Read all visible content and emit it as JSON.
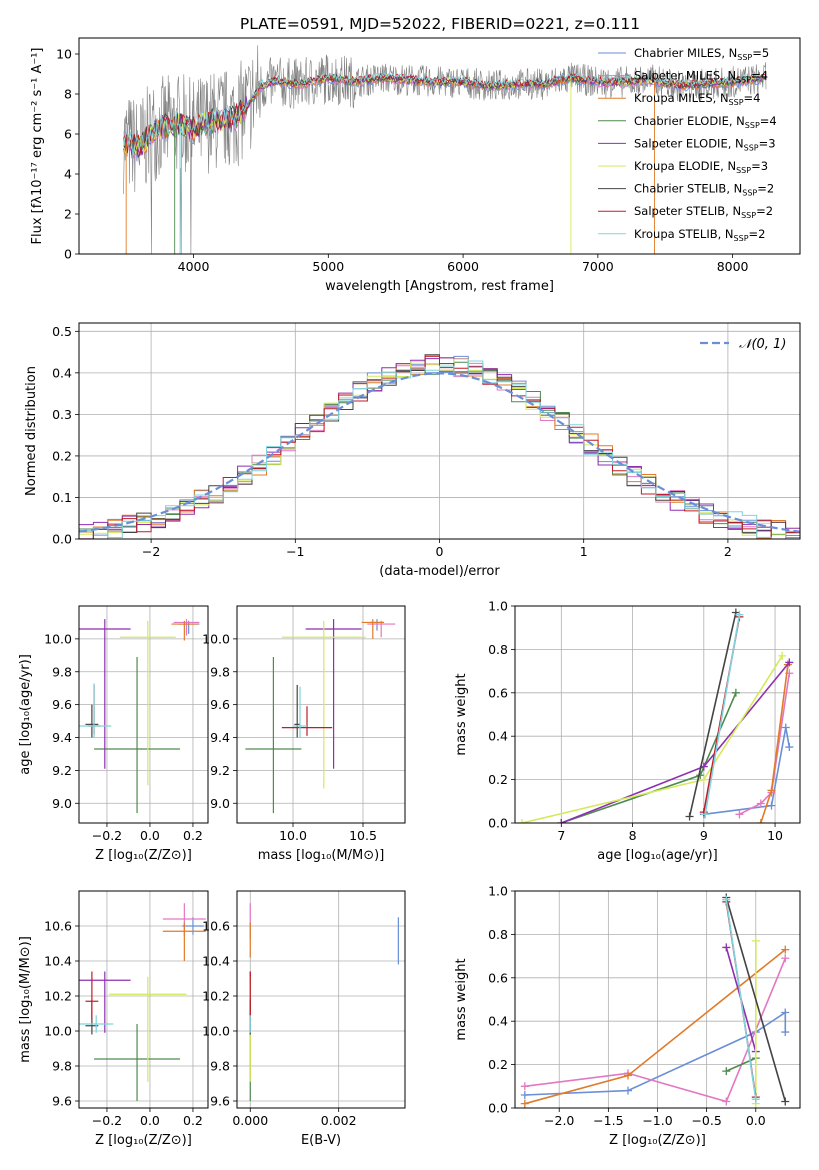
{
  "figure": {
    "title": "PLATE=0591, MJD=52022, FIBERID=0221, z=0.111"
  },
  "colors": {
    "Chabrier MILES": "#6a8fd6",
    "Salpeter MILES": "#e377c2",
    "Kroupa MILES": "#e07b2a",
    "Chabrier ELODIE": "#4f8a4f",
    "Salpeter ELODIE": "#8e2fb0",
    "Kroupa ELODIE": "#d4ea5a",
    "Chabrier STELIB": "#444444",
    "Salpeter STELIB": "#c01c28",
    "Kroupa STELIB": "#7fd3dc",
    "data": "#808080",
    "normal": "#6a8fd6"
  },
  "chart_data": [
    {
      "id": "spectrum",
      "type": "line",
      "xlabel": "wavelength [Angstrom, rest frame]",
      "ylabel": "Flux [fλ10⁻¹⁷ erg cm⁻² s⁻¹ A⁻¹]",
      "xlim": [
        3150,
        8500
      ],
      "ylim": [
        0,
        10.8
      ],
      "xticks": [
        4000,
        5000,
        6000,
        7000,
        8000
      ],
      "yticks": [
        0,
        2,
        4,
        6,
        8,
        10
      ],
      "grid": false,
      "legend_position": "right",
      "legend": [
        {
          "name": "Chabrier MILES",
          "n": "5"
        },
        {
          "name": "Salpeter MILES",
          "n": "4"
        },
        {
          "name": "Kroupa MILES",
          "n": "4"
        },
        {
          "name": "Chabrier ELODIE",
          "n": "4"
        },
        {
          "name": "Salpeter ELODIE",
          "n": "3"
        },
        {
          "name": "Kroupa ELODIE",
          "n": "3"
        },
        {
          "name": "Chabrier STELIB",
          "n": "2"
        },
        {
          "name": "Salpeter STELIB",
          "n": "2"
        },
        {
          "name": "Kroupa STELIB",
          "n": "2"
        }
      ],
      "continuum": {
        "x": [
          3480,
          3600,
          3700,
          3800,
          3900,
          4000,
          4100,
          4200,
          4300,
          4400,
          4500,
          4600,
          4800,
          5000,
          5200,
          5400,
          5600,
          5800,
          6000,
          6200,
          6400,
          6600,
          6800,
          7000,
          7200,
          7400,
          7600,
          7800,
          8000,
          8250
        ],
        "y": [
          5.6,
          5.3,
          6.2,
          6.4,
          6.5,
          6.2,
          6.6,
          6.7,
          6.8,
          7.4,
          8.4,
          8.6,
          8.5,
          8.8,
          8.6,
          8.8,
          8.7,
          8.6,
          8.6,
          8.4,
          8.5,
          8.5,
          8.8,
          8.6,
          8.6,
          8.7,
          8.4,
          8.5,
          8.6,
          8.8
        ]
      }
    },
    {
      "id": "residuals",
      "type": "line",
      "xlabel": "(data-model)/error",
      "ylabel": "Normed distribution",
      "xlim": [
        -2.5,
        2.5
      ],
      "ylim": [
        0,
        0.52
      ],
      "xticks": [
        -2,
        -1,
        0,
        1,
        2
      ],
      "yticks": [
        0.0,
        0.1,
        0.2,
        0.3,
        0.4,
        0.5
      ],
      "grid": true,
      "legend_position": "top-right",
      "legend_label": "𝒩(0, 1)"
    },
    {
      "id": "age-vs-Z",
      "type": "scatter",
      "xlabel": "Z [log₁₀(Z/Z⊙)]",
      "ylabel": "age  [log₁₀(age/yr)]",
      "xlim": [
        -0.33,
        0.27
      ],
      "ylim": [
        8.88,
        10.2
      ],
      "xticks": [
        -0.2,
        0.0,
        0.2
      ],
      "yticks": [
        9.0,
        9.2,
        9.4,
        9.6,
        9.8,
        10.0
      ],
      "grid": true,
      "points": [
        {
          "model": "Chabrier MILES",
          "x": 0.18,
          "y": 10.09,
          "xerr": 0.05,
          "yerr": [
            0.06,
            0.02
          ]
        },
        {
          "model": "Salpeter MILES",
          "x": 0.17,
          "y": 10.1,
          "xerr": 0.06,
          "yerr": [
            0.08,
            0.02
          ]
        },
        {
          "model": "Kroupa MILES",
          "x": 0.16,
          "y": 10.09,
          "xerr": 0.06,
          "yerr": [
            0.1,
            0.02
          ]
        },
        {
          "model": "Chabrier ELODIE",
          "x": -0.06,
          "y": 9.33,
          "xerr": 0.2,
          "yerr": [
            0.39,
            0.56
          ]
        },
        {
          "model": "Salpeter ELODIE",
          "x": -0.21,
          "y": 10.06,
          "xerr": 0.12,
          "yerr": [
            0.85,
            0.06
          ]
        },
        {
          "model": "Kroupa ELODIE",
          "x": -0.01,
          "y": 10.01,
          "xerr": 0.13,
          "yerr": [
            0.9,
            0.1
          ]
        },
        {
          "model": "Chabrier STELIB",
          "x": -0.27,
          "y": 9.48,
          "xerr": 0.03,
          "yerr": [
            0.08,
            0.12
          ]
        },
        {
          "model": "Salpeter STELIB",
          "x": -0.26,
          "y": 9.47,
          "xerr": 0.03,
          "yerr": [
            0.05,
            0.25
          ]
        },
        {
          "model": "Kroupa STELIB",
          "x": -0.26,
          "y": 9.47,
          "xerr": 0.08,
          "yerr": [
            0.07,
            0.26
          ]
        }
      ]
    },
    {
      "id": "age-vs-mass",
      "type": "scatter",
      "xlabel": "mass [log₁₀(M/M⊙)]",
      "ylabel": "",
      "xlim": [
        9.6,
        10.8
      ],
      "ylim": [
        8.88,
        10.2
      ],
      "xticks": [
        10.0,
        10.5
      ],
      "yticks": [
        9.0,
        9.2,
        9.4,
        9.6,
        9.8,
        10.0
      ],
      "grid": true,
      "points": [
        {
          "model": "Chabrier MILES",
          "x": 10.6,
          "y": 10.1,
          "xerr": 0.05,
          "yerr": [
            0.05,
            0.02
          ]
        },
        {
          "model": "Salpeter MILES",
          "x": 10.63,
          "y": 10.09,
          "xerr": 0.1,
          "yerr": [
            0.08,
            0.02
          ]
        },
        {
          "model": "Kroupa MILES",
          "x": 10.57,
          "y": 10.1,
          "xerr": 0.08,
          "yerr": [
            0.1,
            0.02
          ]
        },
        {
          "model": "Chabrier ELODIE",
          "x": 9.86,
          "y": 9.33,
          "xerr": 0.2,
          "yerr": [
            0.39,
            0.56
          ]
        },
        {
          "model": "Salpeter ELODIE",
          "x": 10.29,
          "y": 10.06,
          "xerr": 0.2,
          "yerr": [
            0.85,
            0.06
          ]
        },
        {
          "model": "Kroupa ELODIE",
          "x": 10.22,
          "y": 10.01,
          "xerr": 0.3,
          "yerr": [
            0.92,
            0.1
          ]
        },
        {
          "model": "Chabrier STELIB",
          "x": 10.03,
          "y": 9.48,
          "xerr": 0.02,
          "yerr": [
            0.08,
            0.24
          ]
        },
        {
          "model": "Salpeter STELIB",
          "x": 10.1,
          "y": 9.46,
          "xerr": 0.18,
          "yerr": [
            0.05,
            0.13
          ]
        },
        {
          "model": "Kroupa STELIB",
          "x": 10.05,
          "y": 9.47,
          "xerr": 0.05,
          "yerr": [
            0.07,
            0.24
          ]
        }
      ]
    },
    {
      "id": "weight-vs-age",
      "type": "line",
      "xlabel": "age  [log₁₀(age/yr)]",
      "ylabel": "mass weight",
      "xlim": [
        6.35,
        10.35
      ],
      "ylim": [
        0,
        1
      ],
      "xticks": [
        7,
        8,
        9,
        10
      ],
      "yticks": [
        0.0,
        0.2,
        0.4,
        0.6,
        0.8,
        1.0
      ],
      "grid": true,
      "series": [
        {
          "model": "Chabrier MILES",
          "x": [
            9.0,
            9.95,
            10.15,
            10.2
          ],
          "y": [
            0.04,
            0.08,
            0.44,
            0.35
          ]
        },
        {
          "model": "Salpeter MILES",
          "x": [
            9.5,
            9.8,
            9.95,
            10.2
          ],
          "y": [
            0.04,
            0.09,
            0.14,
            0.69
          ]
        },
        {
          "model": "Kroupa MILES",
          "x": [
            9.8,
            9.95,
            10.18
          ],
          "y": [
            0.0,
            0.15,
            0.73
          ]
        },
        {
          "model": "Chabrier ELODIE",
          "x": [
            7.0,
            8.95,
            9.45
          ],
          "y": [
            0.0,
            0.22,
            0.6
          ]
        },
        {
          "model": "Salpeter ELODIE",
          "x": [
            7.0,
            9.0,
            10.2
          ],
          "y": [
            0.0,
            0.26,
            0.74
          ]
        },
        {
          "model": "Kroupa ELODIE",
          "x": [
            6.45,
            9.0,
            10.1
          ],
          "y": [
            0.0,
            0.2,
            0.77
          ]
        },
        {
          "model": "Chabrier STELIB",
          "x": [
            8.8,
            9.45
          ],
          "y": [
            0.03,
            0.97
          ]
        },
        {
          "model": "Salpeter STELIB",
          "x": [
            9.0,
            9.5
          ],
          "y": [
            0.05,
            0.95
          ]
        },
        {
          "model": "Kroupa STELIB",
          "x": [
            9.02,
            9.5
          ],
          "y": [
            0.04,
            0.96
          ]
        }
      ]
    },
    {
      "id": "mass-vs-Z",
      "type": "scatter",
      "xlabel": "Z [log₁₀(Z/Z⊙)]",
      "ylabel": "mass [log₁₀(M/M⊙)]",
      "xlim": [
        -0.33,
        0.27
      ],
      "ylim": [
        9.56,
        10.8
      ],
      "xticks": [
        -0.2,
        0.0,
        0.2
      ],
      "yticks": [
        9.6,
        9.8,
        10.0,
        10.2,
        10.4,
        10.6
      ],
      "grid": true,
      "points": [
        {
          "model": "Chabrier MILES",
          "x": 0.2,
          "y": 10.6,
          "xerr": 0.05,
          "yerr": [
            0.05,
            0.05
          ]
        },
        {
          "model": "Salpeter MILES",
          "x": 0.16,
          "y": 10.64,
          "xerr": 0.1,
          "yerr": [
            0.1,
            0.09
          ]
        },
        {
          "model": "Kroupa MILES",
          "x": 0.16,
          "y": 10.57,
          "xerr": 0.1,
          "yerr": [
            0.17,
            0.05
          ]
        },
        {
          "model": "Chabrier ELODIE",
          "x": -0.06,
          "y": 9.84,
          "xerr": 0.2,
          "yerr": [
            0.24,
            0.2
          ]
        },
        {
          "model": "Salpeter ELODIE",
          "x": -0.21,
          "y": 10.29,
          "xerr": 0.12,
          "yerr": [
            0.3,
            0.05
          ]
        },
        {
          "model": "Kroupa ELODIE",
          "x": -0.01,
          "y": 10.21,
          "xerr": 0.18,
          "yerr": [
            0.5,
            0.1
          ]
        },
        {
          "model": "Chabrier STELIB",
          "x": -0.27,
          "y": 10.03,
          "xerr": 0.03,
          "yerr": [
            0.05,
            0.15
          ]
        },
        {
          "model": "Salpeter STELIB",
          "x": -0.27,
          "y": 10.17,
          "xerr": 0.03,
          "yerr": [
            0.1,
            0.17
          ]
        },
        {
          "model": "Kroupa STELIB",
          "x": -0.25,
          "y": 10.04,
          "xerr": 0.08,
          "yerr": [
            0.05,
            0.05
          ]
        }
      ]
    },
    {
      "id": "mass-vs-EBV",
      "type": "scatter",
      "xlabel": "E(B-V)",
      "ylabel": "",
      "xlim": [
        -0.0003,
        0.0035
      ],
      "ylim": [
        9.56,
        10.8
      ],
      "xticks": [
        0.0,
        0.002
      ],
      "xticklabels": [
        "0.000",
        "0.002"
      ],
      "yticks": [
        9.6,
        9.8,
        10.0,
        10.2,
        10.4,
        10.6
      ],
      "grid": true,
      "points": [
        {
          "model": "Chabrier MILES",
          "x": 0.00335,
          "y": 10.6,
          "xerr": 0,
          "yerr": [
            0.22,
            0.05
          ]
        },
        {
          "model": "Salpeter MILES",
          "x": 0.0,
          "y": 10.63,
          "xerr": 0,
          "yerr": [
            0.1,
            0.1
          ]
        },
        {
          "model": "Kroupa MILES",
          "x": 0.0,
          "y": 10.57,
          "xerr": 0,
          "yerr": [
            0.15,
            0.05
          ]
        },
        {
          "model": "Chabrier ELODIE",
          "x": 0.0,
          "y": 9.84,
          "xerr": 0,
          "yerr": [
            0.24,
            0.2
          ]
        },
        {
          "model": "Salpeter ELODIE",
          "x": 0.0,
          "y": 10.29,
          "xerr": 0,
          "yerr": [
            0.3,
            0.05
          ]
        },
        {
          "model": "Kroupa ELODIE",
          "x": 0.0,
          "y": 10.21,
          "xerr": 0,
          "yerr": [
            0.5,
            0.1
          ]
        },
        {
          "model": "Chabrier STELIB",
          "x": 0.0,
          "y": 10.03,
          "xerr": 0,
          "yerr": [
            0.05,
            0.15
          ]
        },
        {
          "model": "Salpeter STELIB",
          "x": 0.0,
          "y": 10.17,
          "xerr": 0,
          "yerr": [
            0.1,
            0.17
          ]
        },
        {
          "model": "Kroupa STELIB",
          "x": 0.0,
          "y": 10.04,
          "xerr": 0,
          "yerr": [
            0.05,
            0.05
          ]
        }
      ]
    },
    {
      "id": "weight-vs-Z",
      "type": "line",
      "xlabel": "Z [log₁₀(Z/Z⊙)]",
      "ylabel": "mass weight",
      "xlim": [
        -2.45,
        0.45
      ],
      "ylim": [
        0,
        1
      ],
      "xticks": [
        -2.0,
        -1.5,
        -1.0,
        -0.5,
        0.0
      ],
      "yticks": [
        0.0,
        0.2,
        0.4,
        0.6,
        0.8,
        1.0
      ],
      "grid": true,
      "series": [
        {
          "model": "Chabrier MILES",
          "x": [
            -2.35,
            -1.3,
            0.0,
            0.3,
            0.3
          ],
          "y": [
            0.06,
            0.08,
            0.35,
            0.44,
            0.35
          ]
        },
        {
          "model": "Salpeter MILES",
          "x": [
            -2.35,
            -1.3,
            -0.3,
            0.3
          ],
          "y": [
            0.1,
            0.16,
            0.03,
            0.69
          ]
        },
        {
          "model": "Kroupa MILES",
          "x": [
            -2.35,
            -1.3,
            0.3
          ],
          "y": [
            0.02,
            0.15,
            0.73
          ]
        },
        {
          "model": "Chabrier ELODIE",
          "x": [
            -0.3,
            0.0
          ],
          "y": [
            0.17,
            0.23
          ]
        },
        {
          "model": "Salpeter ELODIE",
          "x": [
            -0.3,
            0.0
          ],
          "y": [
            0.74,
            0.26
          ]
        },
        {
          "model": "Kroupa ELODIE",
          "x": [
            0.0,
            0.0
          ],
          "y": [
            0.02,
            0.77
          ]
        },
        {
          "model": "Chabrier STELIB",
          "x": [
            -0.3,
            0.3
          ],
          "y": [
            0.97,
            0.03
          ]
        },
        {
          "model": "Salpeter STELIB",
          "x": [
            -0.3,
            0.0
          ],
          "y": [
            0.95,
            0.05
          ]
        },
        {
          "model": "Kroupa STELIB",
          "x": [
            -0.3,
            0.0
          ],
          "y": [
            0.96,
            0.04
          ]
        }
      ]
    }
  ]
}
